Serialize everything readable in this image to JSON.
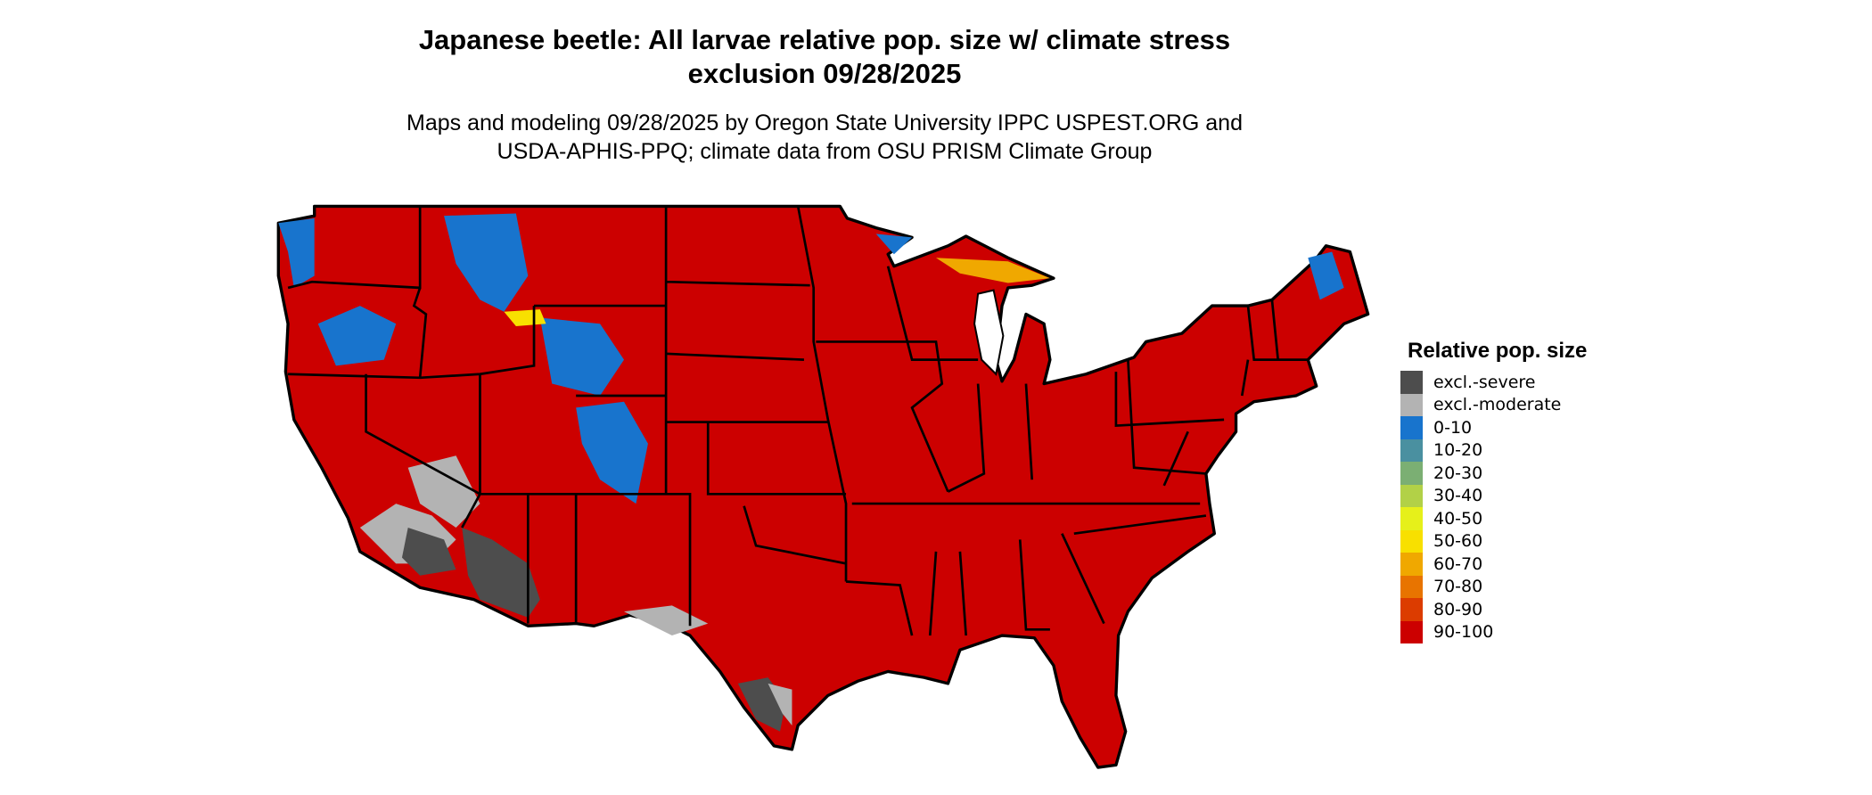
{
  "header": {
    "title_line1": "Japanese beetle: All larvae relative pop. size w/ climate stress",
    "title_line2": "exclusion 09/28/2025",
    "subtitle_line1": "Maps and modeling 09/28/2025 by Oregon State University IPPC USPEST.ORG and",
    "subtitle_line2": "USDA-APHIS-PPQ; climate data from OSU PRISM Climate Group"
  },
  "map": {
    "region": "Contiguous United States",
    "dominant_class": "90-100",
    "background_color": "#CC0000"
  },
  "legend": {
    "title": "Relative pop. size",
    "items": [
      {
        "label": "excl.-severe",
        "color": "#4D4D4D"
      },
      {
        "label": "excl.-moderate",
        "color": "#B3B3B3"
      },
      {
        "label": "0-10",
        "color": "#1874CD"
      },
      {
        "label": "10-20",
        "color": "#4A90A0"
      },
      {
        "label": "20-30",
        "color": "#7BAF73"
      },
      {
        "label": "30-40",
        "color": "#B2D147"
      },
      {
        "label": "40-50",
        "color": "#E6F01A"
      },
      {
        "label": "50-60",
        "color": "#F8E000"
      },
      {
        "label": "60-70",
        "color": "#F0A800"
      },
      {
        "label": "70-80",
        "color": "#E87400"
      },
      {
        "label": "80-90",
        "color": "#DC3C00"
      },
      {
        "label": "90-100",
        "color": "#CC0000"
      }
    ]
  }
}
